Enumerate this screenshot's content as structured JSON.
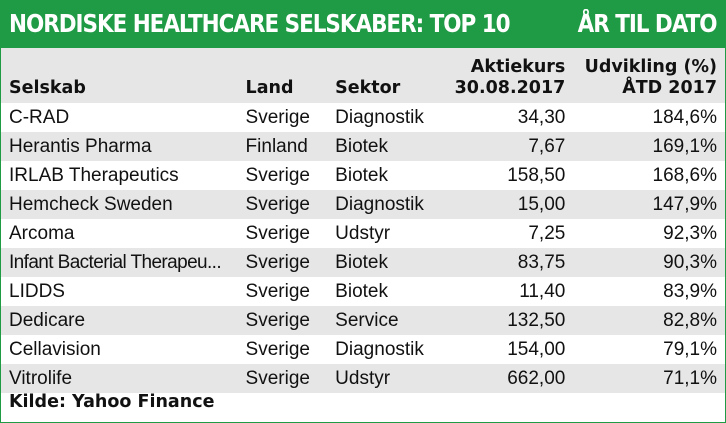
{
  "header": {
    "title": "NORDISKE HEALTHCARE SELSKABER: TOP 10",
    "subtitle": "ÅR TIL DATO",
    "accent_color": "#1f9a45"
  },
  "columns": {
    "company": "Selskab",
    "country": "Land",
    "sector": "Sektor",
    "price_line1": "Aktiekurs",
    "price_line2": "30.08.2017",
    "change_line1": "Udvikling (%)",
    "change_line2": "ÅTD 2017"
  },
  "rows": [
    {
      "company": "C-RAD",
      "country": "Sverige",
      "sector": "Diagnostik",
      "price": "34,30",
      "change": "184,6%"
    },
    {
      "company": "Herantis Pharma",
      "country": "Finland",
      "sector": "Biotek",
      "price": "7,67",
      "change": "169,1%"
    },
    {
      "company": "IRLAB Therapeutics",
      "country": "Sverige",
      "sector": "Biotek",
      "price": "158,50",
      "change": "168,6%"
    },
    {
      "company": "Hemcheck Sweden",
      "country": "Sverige",
      "sector": "Diagnostik",
      "price": "15,00",
      "change": "147,9%"
    },
    {
      "company": "Arcoma",
      "country": "Sverige",
      "sector": "Udstyr",
      "price": "7,25",
      "change": "92,3%"
    },
    {
      "company": "Infant Bacterial Therapeu...",
      "country": "Sverige",
      "sector": "Biotek",
      "price": "83,75",
      "change": "90,3%"
    },
    {
      "company": "LIDDS",
      "country": "Sverige",
      "sector": "Biotek",
      "price": "11,40",
      "change": "83,9%"
    },
    {
      "company": "Dedicare",
      "country": "Sverige",
      "sector": "Service",
      "price": "132,50",
      "change": "82,8%"
    },
    {
      "company": "Cellavision",
      "country": "Sverige",
      "sector": "Diagnostik",
      "price": "154,00",
      "change": "79,1%"
    },
    {
      "company": "Vitrolife",
      "country": "Sverige",
      "sector": "Udstyr",
      "price": "662,00",
      "change": "71,1%"
    }
  ],
  "source": "Kilde: Yahoo Finance"
}
